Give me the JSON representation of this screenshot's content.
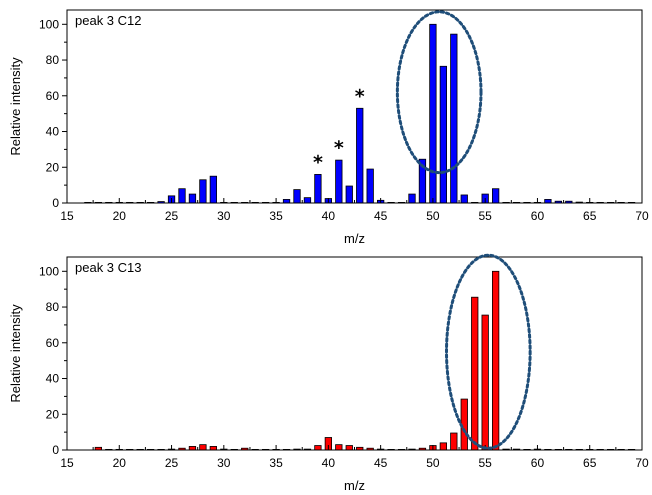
{
  "chart_data": [
    {
      "type": "bar",
      "panel_label": "peak 3 C12",
      "xlabel": "m/z",
      "ylabel": "Relative intensity",
      "xlim": [
        15,
        70
      ],
      "ylim": [
        0,
        108
      ],
      "xticks": [
        15,
        20,
        25,
        30,
        35,
        40,
        45,
        50,
        55,
        60,
        65,
        70
      ],
      "yticks": [
        0,
        20,
        40,
        60,
        80,
        100
      ],
      "bar_color": "#0000ff",
      "x": [
        17,
        18,
        19,
        20,
        21,
        22,
        23,
        24,
        25,
        26,
        27,
        28,
        29,
        30,
        31,
        32,
        33,
        34,
        35,
        36,
        37,
        38,
        39,
        40,
        41,
        42,
        43,
        44,
        45,
        46,
        47,
        48,
        49,
        50,
        51,
        52,
        53,
        54,
        55,
        56,
        57,
        58,
        59,
        60,
        61,
        62,
        63,
        64,
        65,
        66,
        67,
        68,
        69
      ],
      "values": [
        0.3,
        0.2,
        0.2,
        0.2,
        0.3,
        0.3,
        0.3,
        0.8,
        4,
        8,
        5,
        13,
        15,
        0.3,
        0.2,
        0.2,
        0.2,
        0.3,
        0.3,
        2,
        7.5,
        3,
        16,
        2.5,
        24,
        9.5,
        53,
        19,
        1.5,
        0.3,
        0.3,
        5,
        24.5,
        100,
        76.5,
        94.5,
        4.5,
        0.3,
        5,
        8,
        0.3,
        0.2,
        0.2,
        0.3,
        2,
        1,
        1,
        0.5,
        0.2,
        0.2,
        0.2,
        0.2,
        0.2
      ],
      "annotations": [
        {
          "text": "*",
          "x": 39,
          "y": 16
        },
        {
          "text": "*",
          "x": 41,
          "y": 24
        },
        {
          "text": "*",
          "x": 43,
          "y": 53
        }
      ],
      "highlight_ellipse": {
        "center": [
          50.6,
          62
        ],
        "radii": [
          4,
          45
        ],
        "color": "#1f4e79",
        "style": "dotted"
      }
    },
    {
      "type": "bar",
      "panel_label": "peak 3 C13",
      "xlabel": "m/z",
      "ylabel": "Relative intensity",
      "xlim": [
        15,
        70
      ],
      "ylim": [
        0,
        108
      ],
      "xticks": [
        15,
        20,
        25,
        30,
        35,
        40,
        45,
        50,
        55,
        60,
        65,
        70
      ],
      "yticks": [
        0,
        20,
        40,
        60,
        80,
        100
      ],
      "bar_color": "#ff0000",
      "x": [
        18,
        19,
        20,
        21,
        22,
        23,
        24,
        25,
        26,
        27,
        28,
        29,
        30,
        31,
        32,
        33,
        34,
        35,
        36,
        37,
        38,
        39,
        40,
        41,
        42,
        43,
        44,
        45,
        46,
        47,
        48,
        49,
        50,
        51,
        52,
        53,
        54,
        55,
        56,
        57,
        58,
        59,
        60,
        61,
        62,
        63,
        64,
        65,
        66,
        67,
        68,
        69
      ],
      "values": [
        1.5,
        0.3,
        0.2,
        0.2,
        0.2,
        0.2,
        0.3,
        0.5,
        1,
        2,
        3,
        2,
        0.5,
        0.3,
        1,
        0.3,
        0.2,
        0.3,
        0.3,
        0.5,
        0.5,
        2.5,
        7,
        3,
        2.5,
        1.5,
        1,
        0.5,
        0.3,
        0.3,
        0.5,
        1,
        2.5,
        4,
        9.5,
        28.5,
        85.5,
        75.5,
        100,
        0.5,
        0.5,
        0.3,
        0.5,
        0.3,
        0.3,
        0.3,
        0.2,
        0.2,
        0.2,
        0.2,
        0.2,
        0.2
      ],
      "highlight_ellipse": {
        "center": [
          55.3,
          55
        ],
        "radii": [
          4,
          54
        ],
        "color": "#1f4e79",
        "style": "dotted"
      }
    }
  ]
}
